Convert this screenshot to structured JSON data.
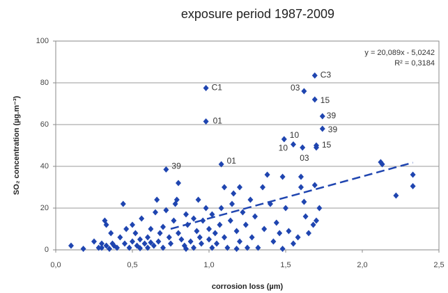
{
  "chart_data": {
    "type": "scatter",
    "title": "exposure period 1987-2009",
    "x_label": "corrosion loss (µm)",
    "y_label": "SO₂ concentration (µg.m⁻³)",
    "color": "#1f45b0",
    "grid": true,
    "xlim": [
      0,
      2.5
    ],
    "ylim": [
      0,
      100
    ],
    "xticks": [
      {
        "value": 0,
        "label": "0,0"
      },
      {
        "value": 0.5,
        "label": "0,5"
      },
      {
        "value": 1,
        "label": "1,0"
      },
      {
        "value": 1.5,
        "label": "1,5"
      },
      {
        "value": 2,
        "label": "2,0"
      },
      {
        "value": 2.5,
        "label": "2,5"
      }
    ],
    "yticks": [
      0,
      20,
      40,
      60,
      80,
      100
    ],
    "x": [
      0.1,
      0.18,
      0.25,
      0.28,
      0.3,
      0.32,
      0.33,
      0.33,
      0.35,
      0.36,
      0.37,
      0.4,
      0.42,
      0.44,
      0.45,
      0.46,
      0.48,
      0.5,
      0.5,
      0.52,
      0.53,
      0.55,
      0.56,
      0.58,
      0.6,
      0.6,
      0.62,
      0.64,
      0.65,
      0.66,
      0.67,
      0.68,
      0.7,
      0.7,
      0.72,
      0.74,
      0.75,
      0.77,
      0.78,
      0.79,
      0.8,
      0.8,
      0.82,
      0.84,
      0.85,
      0.86,
      0.88,
      0.9,
      0.9,
      0.92,
      0.93,
      0.94,
      0.95,
      0.96,
      0.98,
      1.0,
      1.0,
      1.02,
      1.02,
      1.04,
      1.05,
      1.07,
      1.08,
      1.1,
      1.1,
      1.12,
      1.14,
      1.15,
      1.16,
      1.18,
      1.2,
      1.2,
      1.22,
      1.24,
      1.25,
      1.27,
      1.28,
      1.3,
      1.32,
      1.35,
      1.36,
      1.38,
      1.4,
      1.42,
      1.44,
      1.46,
      1.48,
      1.48,
      1.5,
      1.52,
      1.55,
      1.58,
      1.6,
      1.6,
      1.62,
      1.63,
      1.65,
      1.68,
      1.69,
      1.7,
      1.72,
      2.12,
      2.13,
      2.22,
      2.33,
      2.33,
      0.3,
      0.38,
      0.55,
      0.62,
      0.85,
      1.18,
      1.7
    ],
    "values": [
      2,
      0.5,
      4,
      1,
      3,
      14,
      12,
      2,
      0.5,
      8,
      3,
      1,
      6,
      22,
      3,
      10,
      1,
      4,
      12,
      8,
      2,
      5,
      15,
      3,
      6,
      1,
      10,
      2,
      18,
      24,
      4,
      8,
      1,
      11,
      19,
      6,
      3,
      14,
      22,
      24,
      32,
      8,
      5,
      2,
      17,
      12,
      4,
      15,
      1,
      9,
      24,
      6,
      3,
      14,
      20,
      10,
      5,
      1,
      17,
      8,
      3,
      12,
      20,
      30,
      6,
      1,
      14,
      22,
      27,
      9,
      30,
      4,
      18,
      12,
      1,
      24,
      6,
      16,
      1,
      30,
      10,
      36,
      22,
      4,
      13,
      8,
      35,
      0.5,
      20,
      9,
      3,
      6,
      35,
      30,
      23,
      16,
      8,
      12,
      31,
      14,
      20,
      42,
      41,
      26,
      36,
      30.5,
      1,
      2,
      0.8,
      3.5,
      0.5,
      0.5,
      49
    ],
    "labeled_points": [
      {
        "x": 0.98,
        "y": 77.5,
        "label": "C1"
      },
      {
        "x": 0.98,
        "y": 61.5,
        "label": "01"
      },
      {
        "x": 1.08,
        "y": 41,
        "label": "01"
      },
      {
        "x": 0.72,
        "y": 38.5,
        "label": "39"
      },
      {
        "x": 1.69,
        "y": 83.5,
        "label": "C3"
      },
      {
        "x": 1.62,
        "y": 76,
        "label": "03"
      },
      {
        "x": 1.69,
        "y": 72,
        "label": "15"
      },
      {
        "x": 1.74,
        "y": 64,
        "label": "39"
      },
      {
        "x": 1.74,
        "y": 58,
        "label": "39"
      },
      {
        "x": 1.49,
        "y": 53,
        "label": "10"
      },
      {
        "x": 1.55,
        "y": 50.5,
        "label": "10"
      },
      {
        "x": 1.61,
        "y": 49,
        "label": "03"
      },
      {
        "x": 1.7,
        "y": 50,
        "label": "15"
      }
    ],
    "trendline": {
      "slope": 20.089,
      "intercept": -5.0242,
      "x_range": [
        0.75,
        2.33
      ],
      "equation": "y = 20,089x - 5,0242",
      "r2_label": "R² = 0,3184"
    }
  }
}
